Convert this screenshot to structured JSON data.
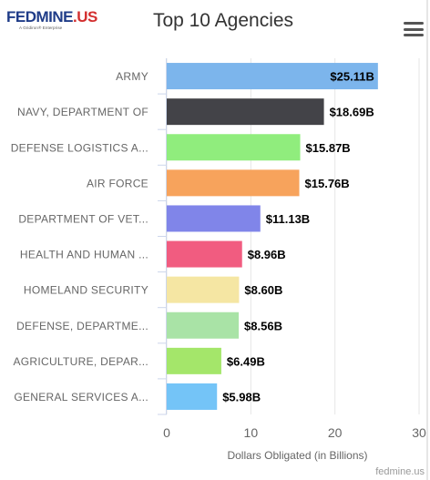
{
  "header": {
    "logo_text": "FEDMINE",
    "logo_dot": ".US",
    "logo_sub": "A Gridiron® Enterprise",
    "menu_icon": "hamburger-menu-icon"
  },
  "credits": "fedmine.us",
  "colors": {
    "bars": [
      "#7cb5ec",
      "#434348",
      "#90ed7d",
      "#f7a35c",
      "#8085e9",
      "#f15c80",
      "#f5e6a3",
      "#a9e3a6",
      "#a4e66a",
      "#74c4f7"
    ],
    "gridline": "#e6e6e6",
    "axis_text": "#666666",
    "label_text": "#000000"
  },
  "chart_data": {
    "type": "bar",
    "orientation": "horizontal",
    "title": "Top 10 Agencies",
    "categories": [
      "ARMY",
      "NAVY, DEPARTMENT OF",
      "DEFENSE LOGISTICS A...",
      "AIR FORCE",
      "DEPARTMENT OF VET...",
      "HEALTH AND HUMAN ...",
      "HOMELAND SECURITY",
      "DEFENSE, DEPARTME...",
      "AGRICULTURE, DEPAR...",
      "GENERAL SERVICES A..."
    ],
    "values": [
      25.11,
      18.69,
      15.87,
      15.76,
      11.13,
      8.96,
      8.6,
      8.56,
      6.49,
      5.98
    ],
    "data_labels": [
      "$25.11B",
      "$18.69B",
      "$15.87B",
      "$15.76B",
      "$11.13B",
      "$8.96B",
      "$8.60B",
      "$8.56B",
      "$6.49B",
      "$5.98B"
    ],
    "xlabel": "Dollars Obligated (in Billions)",
    "ylabel": "",
    "xlim": [
      0,
      30
    ],
    "xticks": [
      0,
      10,
      20,
      30
    ],
    "grid": true,
    "legend": "none"
  }
}
